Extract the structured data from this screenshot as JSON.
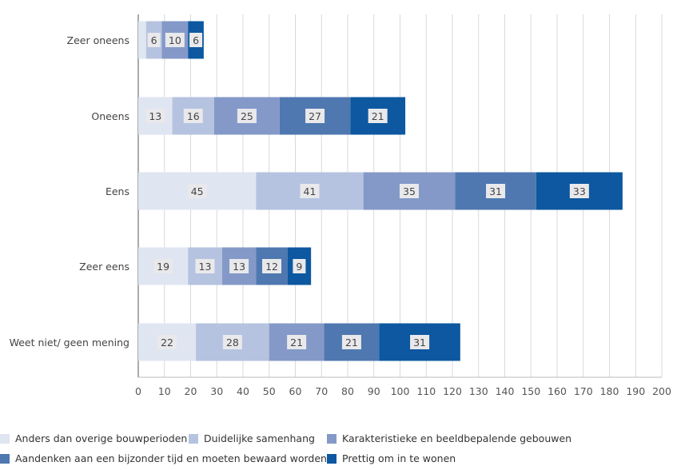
{
  "chart_data": {
    "type": "bar",
    "orientation": "horizontal",
    "stacked": true,
    "categories": [
      "Zeer oneens",
      "Oneens",
      "Eens",
      "Zeer eens",
      "Weet niet/ geen mening"
    ],
    "series": [
      {
        "name": "Anders dan overige bouwperioden",
        "values": [
          3,
          13,
          45,
          19,
          22
        ],
        "color": "#dfe5f1"
      },
      {
        "name": "Duidelijke samenhang",
        "values": [
          6,
          16,
          41,
          13,
          28
        ],
        "color": "#b5c3e0"
      },
      {
        "name": "Karakteristieke en beeldbepalende gebouwen",
        "values": [
          10,
          25,
          35,
          13,
          21
        ],
        "color": "#8499c8"
      },
      {
        "name": "Aandenken aan een bijzonder tijd en moeten bewaard worden",
        "values": [
          0,
          27,
          31,
          12,
          21
        ],
        "color": "#4f78b0"
      },
      {
        "name": "Prettig om in te wonen",
        "values": [
          6,
          21,
          33,
          9,
          31
        ],
        "color": "#0d58a0"
      }
    ],
    "data_labels": [
      [
        "",
        "6",
        "10",
        "",
        "6"
      ],
      [
        "13",
        "16",
        "25",
        "27",
        "21"
      ],
      [
        "45",
        "41",
        "35",
        "31",
        "33"
      ],
      [
        "19",
        "13",
        "13",
        "12",
        "9"
      ],
      [
        "22",
        "28",
        "21",
        "21",
        "31"
      ]
    ],
    "x_ticks": [
      "0",
      "10",
      "20",
      "30",
      "40",
      "50",
      "60",
      "70",
      "80",
      "90",
      "100",
      "110",
      "120",
      "130",
      "140",
      "150",
      "160",
      "170",
      "180",
      "190",
      "200"
    ],
    "xlim": [
      0,
      200
    ],
    "grid": true,
    "legend_position": "bottom"
  }
}
